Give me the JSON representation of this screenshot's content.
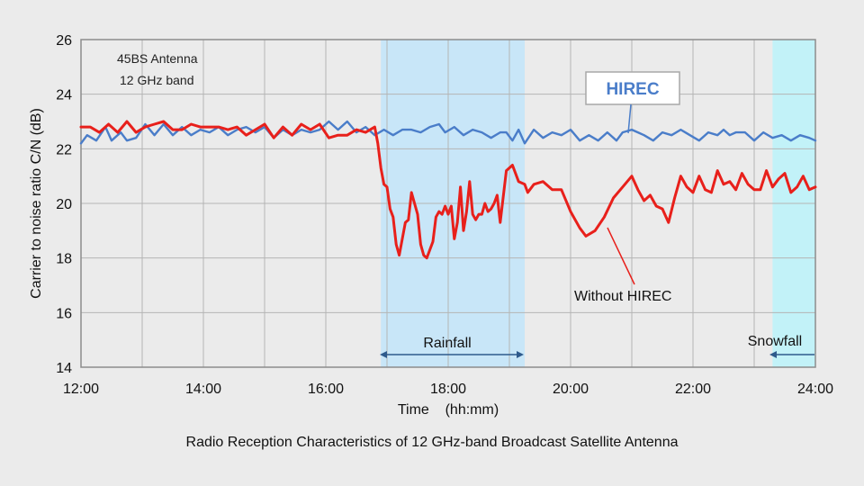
{
  "chart_data": {
    "type": "line",
    "title": "Radio Reception Characteristics of 12 GHz-band Broadcast Satellite Antenna",
    "xlabel": "Time    (hh:mm)",
    "ylabel": "Carrier to noise ratio  C/N  (dB)",
    "xlim": [
      12,
      24
    ],
    "ylim": [
      14,
      26
    ],
    "x_ticks": [
      12,
      14,
      16,
      18,
      20,
      22,
      24
    ],
    "x_tick_labels": [
      "12:00",
      "14:00",
      "16:00",
      "18:00",
      "20:00",
      "22:00",
      "24:00"
    ],
    "y_ticks": [
      14,
      16,
      18,
      20,
      22,
      24,
      26
    ],
    "y_tick_labels": [
      "14",
      "16",
      "18",
      "20",
      "22",
      "24",
      "26"
    ],
    "grid": true,
    "annotations": {
      "antenna_line1": "45BS Antenna",
      "antenna_line2": "12 GHz band",
      "rainfall": "Rainfall",
      "snowfall": "Snowfall"
    },
    "shaded_regions": [
      {
        "name": "Rainfall",
        "x": [
          16.9,
          19.25
        ],
        "color": "#c8e6f8"
      },
      {
        "name": "Snowfall",
        "x": [
          23.3,
          24.0
        ],
        "color": "#c2f2f8"
      }
    ],
    "series": [
      {
        "name": "HIREC",
        "color": "#4a7dc9",
        "x": [
          12.0,
          12.1,
          12.25,
          12.4,
          12.5,
          12.65,
          12.75,
          12.9,
          13.05,
          13.2,
          13.35,
          13.5,
          13.65,
          13.8,
          13.95,
          14.1,
          14.25,
          14.4,
          14.55,
          14.7,
          14.85,
          15.0,
          15.15,
          15.3,
          15.45,
          15.6,
          15.75,
          15.9,
          16.05,
          16.2,
          16.35,
          16.5,
          16.65,
          16.8,
          16.95,
          17.1,
          17.25,
          17.4,
          17.55,
          17.7,
          17.85,
          17.95,
          18.1,
          18.25,
          18.4,
          18.55,
          18.7,
          18.85,
          18.95,
          19.05,
          19.15,
          19.25,
          19.4,
          19.55,
          19.7,
          19.85,
          20.0,
          20.15,
          20.3,
          20.45,
          20.6,
          20.75,
          20.85,
          21.0,
          21.1,
          21.2,
          21.35,
          21.5,
          21.65,
          21.8,
          21.95,
          22.1,
          22.25,
          22.4,
          22.5,
          22.6,
          22.7,
          22.85,
          23.0,
          23.15,
          23.3,
          23.45,
          23.6,
          23.75,
          23.9,
          24.0
        ],
        "y": [
          22.2,
          22.5,
          22.3,
          22.8,
          22.3,
          22.6,
          22.3,
          22.4,
          22.9,
          22.5,
          22.9,
          22.5,
          22.8,
          22.5,
          22.7,
          22.6,
          22.8,
          22.5,
          22.7,
          22.8,
          22.6,
          22.8,
          22.4,
          22.7,
          22.5,
          22.7,
          22.6,
          22.7,
          23.0,
          22.7,
          23.0,
          22.6,
          22.8,
          22.5,
          22.7,
          22.5,
          22.7,
          22.7,
          22.6,
          22.8,
          22.9,
          22.6,
          22.8,
          22.5,
          22.7,
          22.6,
          22.4,
          22.6,
          22.6,
          22.3,
          22.7,
          22.2,
          22.7,
          22.4,
          22.6,
          22.5,
          22.7,
          22.3,
          22.5,
          22.3,
          22.6,
          22.3,
          22.6,
          22.7,
          22.6,
          22.5,
          22.3,
          22.6,
          22.5,
          22.7,
          22.5,
          22.3,
          22.6,
          22.5,
          22.7,
          22.5,
          22.6,
          22.6,
          22.3,
          22.6,
          22.4,
          22.5,
          22.3,
          22.5,
          22.4,
          22.3
        ]
      },
      {
        "name": "Without HIREC",
        "color": "#e8201b",
        "x": [
          12.0,
          12.15,
          12.3,
          12.45,
          12.6,
          12.75,
          12.9,
          13.05,
          13.2,
          13.35,
          13.5,
          13.65,
          13.8,
          13.95,
          14.1,
          14.25,
          14.4,
          14.55,
          14.7,
          14.85,
          15.0,
          15.15,
          15.3,
          15.45,
          15.6,
          15.75,
          15.9,
          16.05,
          16.2,
          16.35,
          16.5,
          16.65,
          16.8,
          16.85,
          16.9,
          16.95,
          17.0,
          17.05,
          17.1,
          17.15,
          17.2,
          17.25,
          17.3,
          17.35,
          17.4,
          17.45,
          17.5,
          17.55,
          17.6,
          17.65,
          17.7,
          17.75,
          17.8,
          17.85,
          17.9,
          17.95,
          18.0,
          18.05,
          18.1,
          18.15,
          18.2,
          18.25,
          18.3,
          18.35,
          18.4,
          18.45,
          18.5,
          18.55,
          18.6,
          18.65,
          18.7,
          18.75,
          18.8,
          18.85,
          18.95,
          19.05,
          19.15,
          19.25,
          19.3,
          19.4,
          19.55,
          19.7,
          19.85,
          20.0,
          20.15,
          20.25,
          20.4,
          20.55,
          20.7,
          20.85,
          21.0,
          21.1,
          21.2,
          21.3,
          21.4,
          21.5,
          21.6,
          21.7,
          21.8,
          21.9,
          22.0,
          22.1,
          22.2,
          22.3,
          22.4,
          22.5,
          22.6,
          22.7,
          22.8,
          22.9,
          23.0,
          23.1,
          23.2,
          23.3,
          23.4,
          23.5,
          23.6,
          23.7,
          23.8,
          23.9,
          24.0
        ],
        "y": [
          22.8,
          22.8,
          22.6,
          22.9,
          22.6,
          23.0,
          22.6,
          22.8,
          22.9,
          23.0,
          22.7,
          22.7,
          22.9,
          22.8,
          22.8,
          22.8,
          22.7,
          22.8,
          22.5,
          22.7,
          22.9,
          22.4,
          22.8,
          22.5,
          22.9,
          22.7,
          22.9,
          22.4,
          22.5,
          22.5,
          22.7,
          22.6,
          22.8,
          22.2,
          21.3,
          20.7,
          20.6,
          19.8,
          19.5,
          18.5,
          18.1,
          18.7,
          19.3,
          19.4,
          20.4,
          20.0,
          19.6,
          18.5,
          18.1,
          18.0,
          18.3,
          18.6,
          19.5,
          19.7,
          19.6,
          19.9,
          19.6,
          19.9,
          18.7,
          19.3,
          20.6,
          19.0,
          19.7,
          20.8,
          19.6,
          19.4,
          19.6,
          19.6,
          20.0,
          19.7,
          19.8,
          20.0,
          20.3,
          19.3,
          21.2,
          21.4,
          20.8,
          20.7,
          20.4,
          20.7,
          20.8,
          20.5,
          20.5,
          19.7,
          19.1,
          18.8,
          19.0,
          19.5,
          20.2,
          20.6,
          21.0,
          20.5,
          20.1,
          20.3,
          19.9,
          19.8,
          19.3,
          20.2,
          21.0,
          20.6,
          20.4,
          21.0,
          20.5,
          20.4,
          21.2,
          20.7,
          20.8,
          20.5,
          21.1,
          20.7,
          20.5,
          20.5,
          21.2,
          20.6,
          20.9,
          21.1,
          20.4,
          20.6,
          21.0,
          20.5,
          20.6
        ]
      }
    ]
  }
}
